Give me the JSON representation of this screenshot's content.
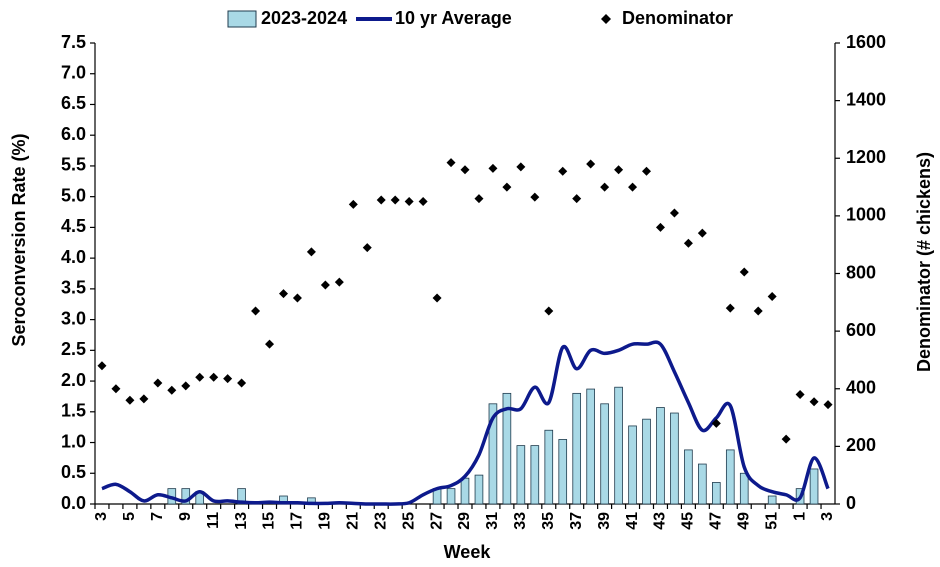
{
  "chart_data": {
    "type": "bar",
    "legend": "top",
    "xlabel": "Week",
    "ylabel": "Seroconversion Rate (%)",
    "y2label": "Denominator (# chickens)",
    "categories": [
      "3",
      null,
      "5",
      null,
      "7",
      null,
      "9",
      null,
      "11",
      null,
      "13",
      null,
      "15",
      null,
      "17",
      null,
      "19",
      null,
      "21",
      null,
      "23",
      null,
      "25",
      null,
      "27",
      null,
      "29",
      null,
      "31",
      null,
      "33",
      null,
      "35",
      null,
      "37",
      null,
      "39",
      null,
      "41",
      null,
      "43",
      null,
      "45",
      null,
      "47",
      null,
      "49",
      null,
      "51",
      null,
      "1",
      null,
      "3"
    ],
    "series": [
      {
        "name": "2023-2024",
        "type": "bar",
        "color": "#a9d9e6",
        "values": [
          0,
          0,
          0,
          0,
          0,
          0.25,
          0.25,
          0.2,
          0,
          0,
          0.25,
          0,
          0,
          0.13,
          0,
          0.1,
          0,
          0,
          0,
          0,
          0,
          0,
          0,
          0,
          0.25,
          0.25,
          0.42,
          0.47,
          1.63,
          1.8,
          0.95,
          0.95,
          1.2,
          1.05,
          1.8,
          1.87,
          1.63,
          1.9,
          1.27,
          1.38,
          1.57,
          1.48,
          0.88,
          0.65,
          0.35,
          0.88,
          0.5,
          0,
          0.13,
          0,
          0.25,
          0.57,
          0
        ]
      },
      {
        "name": "10 yr Average",
        "type": "line",
        "color": "#0d1a8c",
        "values": [
          0.25,
          0.32,
          0.2,
          0.05,
          0.15,
          0.1,
          0.05,
          0.2,
          0.05,
          0.05,
          0.03,
          0.02,
          0.03,
          0.02,
          0.02,
          0.01,
          0.01,
          0.02,
          0.01,
          0,
          0,
          0,
          0.02,
          0.15,
          0.25,
          0.3,
          0.45,
          0.8,
          1.4,
          1.55,
          1.55,
          1.9,
          1.65,
          2.55,
          2.2,
          2.5,
          2.45,
          2.5,
          2.6,
          2.6,
          2.6,
          2.15,
          1.65,
          1.2,
          1.4,
          1.6,
          0.6,
          0.3,
          0.2,
          0.15,
          0.1,
          0.75,
          0.25
        ]
      },
      {
        "name": "Denominator",
        "type": "scatter",
        "axis": "y2",
        "color": "#000000",
        "values": [
          480,
          400,
          360,
          365,
          420,
          395,
          410,
          440,
          440,
          435,
          420,
          670,
          555,
          730,
          715,
          875,
          760,
          770,
          1040,
          890,
          1055,
          1055,
          1050,
          1050,
          715,
          1185,
          1160,
          1060,
          1165,
          1100,
          1170,
          1065,
          670,
          1155,
          1060,
          1180,
          1100,
          1160,
          1100,
          1155,
          960,
          1010,
          905,
          940,
          280,
          680,
          805,
          670,
          720,
          225,
          380,
          355,
          345
        ]
      }
    ],
    "ylim": [
      0,
      7.5
    ],
    "yticks": [
      {
        "value": 0,
        "label": "0.0"
      },
      {
        "value": 0.5,
        "label": "0.5"
      },
      {
        "value": 1,
        "label": "1.0"
      },
      {
        "value": 1.5,
        "label": "1.5"
      },
      {
        "value": 2,
        "label": "2.0"
      },
      {
        "value": 2.5,
        "label": "2.5"
      },
      {
        "value": 3,
        "label": "3.0"
      },
      {
        "value": 3.5,
        "label": "3.5"
      },
      {
        "value": 4,
        "label": "4.0"
      },
      {
        "value": 4.5,
        "label": "4.5"
      },
      {
        "value": 5,
        "label": "5.0"
      },
      {
        "value": 5.5,
        "label": "5.5"
      },
      {
        "value": 6,
        "label": "6.0"
      },
      {
        "value": 6.5,
        "label": "6.5"
      },
      {
        "value": 7,
        "label": "7.0"
      },
      {
        "value": 7.5,
        "label": "7.5"
      }
    ],
    "y2lim": [
      0,
      1600
    ],
    "y2ticks": [
      0,
      200,
      400,
      600,
      800,
      1000,
      1200,
      1400,
      1600
    ],
    "grid": false
  }
}
